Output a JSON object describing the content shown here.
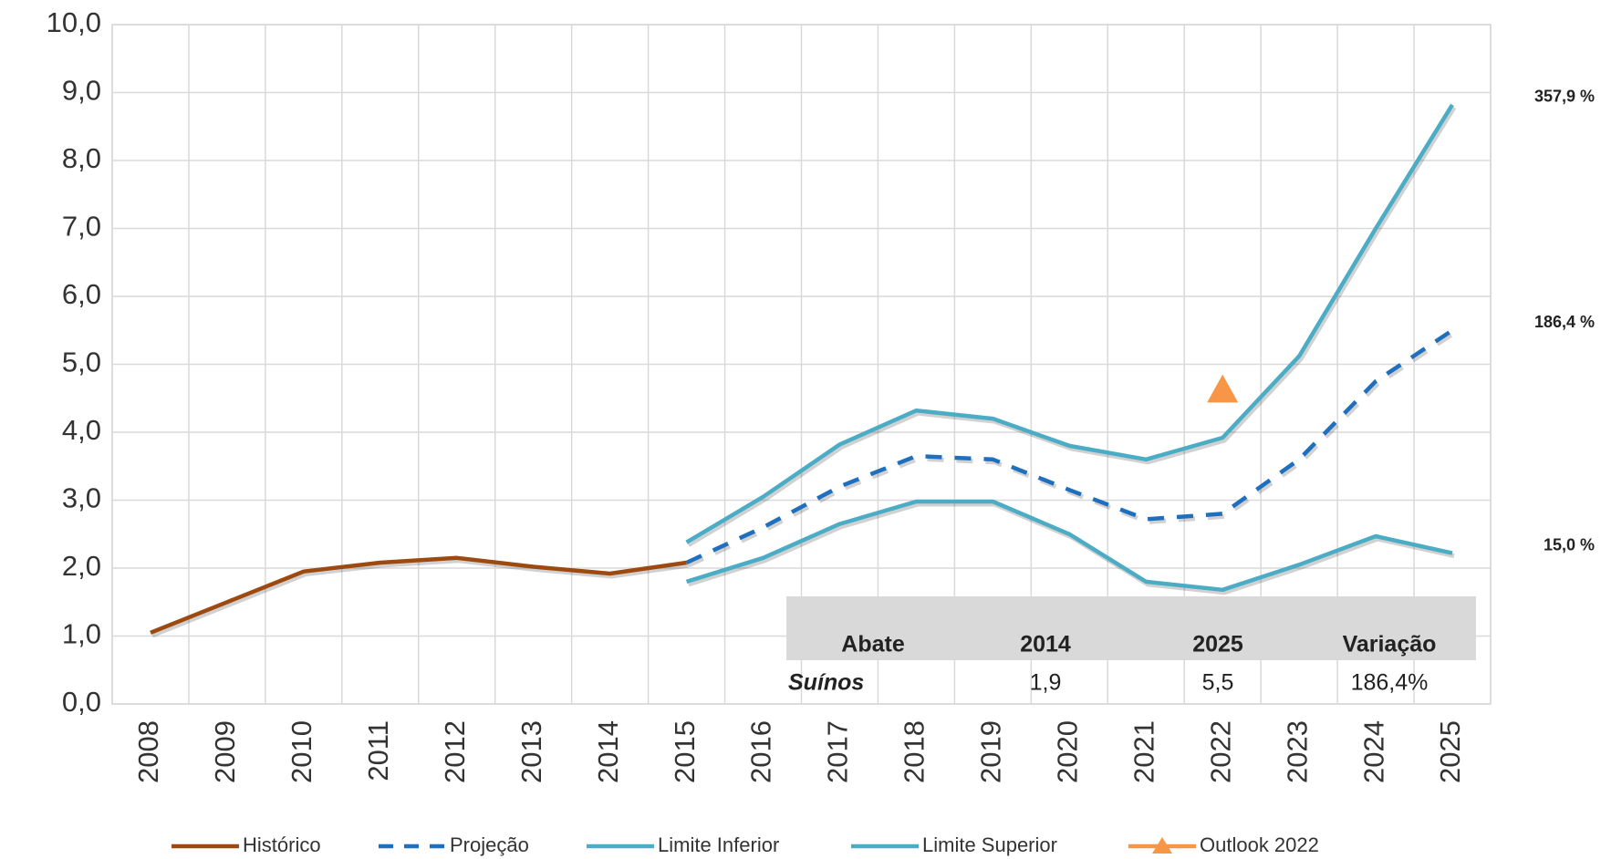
{
  "chart_data": {
    "type": "line",
    "categories": [
      "2008",
      "2009",
      "2010",
      "2011",
      "2012",
      "2013",
      "2014",
      "2015",
      "2016",
      "2017",
      "2018",
      "2019",
      "2020",
      "2021",
      "2022",
      "2023",
      "2024",
      "2025"
    ],
    "series": [
      {
        "name": "Histórico",
        "color": "#9c4a10",
        "values": [
          1.05,
          1.5,
          1.95,
          2.08,
          2.15,
          2.02,
          1.92,
          2.08,
          null,
          null,
          null,
          null,
          null,
          null,
          null,
          null,
          null,
          null
        ]
      },
      {
        "name": "Projeção",
        "color": "#1f6fbf",
        "dashed": true,
        "values": [
          null,
          null,
          null,
          null,
          null,
          null,
          null,
          2.08,
          2.6,
          3.2,
          3.65,
          3.6,
          3.15,
          2.72,
          2.8,
          3.6,
          4.75,
          5.5
        ]
      },
      {
        "name": "Limite Inferior",
        "color": "#4bacc6",
        "values": [
          null,
          null,
          null,
          null,
          null,
          null,
          null,
          1.8,
          2.15,
          2.65,
          2.98,
          2.98,
          2.5,
          1.8,
          1.68,
          2.05,
          2.47,
          2.22
        ]
      },
      {
        "name": "Limite Superior",
        "color": "#4bacc6",
        "values": [
          null,
          null,
          null,
          null,
          null,
          null,
          null,
          2.38,
          3.05,
          3.82,
          4.32,
          4.2,
          3.8,
          3.6,
          3.92,
          5.12,
          7.0,
          8.82
        ]
      },
      {
        "name": "Outlook 2022",
        "color": "#f79646",
        "marker": "triangle",
        "values": [
          null,
          null,
          null,
          null,
          null,
          null,
          null,
          null,
          null,
          null,
          null,
          null,
          null,
          null,
          4.62,
          null,
          null,
          null
        ]
      }
    ],
    "ylim": [
      0,
      10
    ],
    "yticks": [
      {
        "value": 0,
        "label": "0,0"
      },
      {
        "value": 1,
        "label": "1,0"
      },
      {
        "value": 2,
        "label": "2,0"
      },
      {
        "value": 3,
        "label": "3,0"
      },
      {
        "value": 4,
        "label": "4,0"
      },
      {
        "value": 5,
        "label": "5,0"
      },
      {
        "value": 6,
        "label": "6,0"
      },
      {
        "value": 7,
        "label": "7,0"
      },
      {
        "value": 8,
        "label": "8,0"
      },
      {
        "value": 9,
        "label": "9,0"
      },
      {
        "value": 10,
        "label": "10,0"
      }
    ],
    "grid": true,
    "legend": "bottom",
    "annotations": [
      {
        "text": "357,9 %",
        "series": 3
      },
      {
        "text": "186,4 %",
        "series": 1
      },
      {
        "text": "15,0 %",
        "series": 2
      }
    ],
    "table": {
      "header": [
        "Abate",
        "2014",
        "2025",
        "Variação"
      ],
      "rows": [
        [
          "Suínos",
          "1,9",
          "5,5",
          "186,4%"
        ]
      ]
    }
  }
}
